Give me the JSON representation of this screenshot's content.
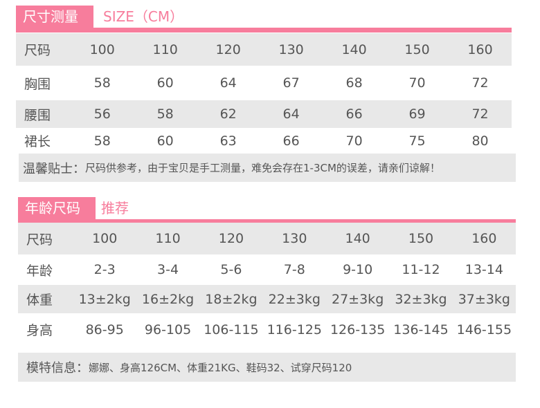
{
  "measure": {
    "tag": "尺寸测量",
    "subtitle": "SIZE（CM）",
    "rows": [
      {
        "label": "尺码",
        "values": [
          "100",
          "110",
          "120",
          "130",
          "140",
          "150",
          "160"
        ]
      },
      {
        "label": "胸围",
        "values": [
          "58",
          "60",
          "64",
          "67",
          "68",
          "70",
          "72"
        ]
      },
      {
        "label": "腰围",
        "values": [
          "56",
          "58",
          "62",
          "64",
          "66",
          "69",
          "72"
        ]
      },
      {
        "label": "裙长",
        "values": [
          "58",
          "60",
          "63",
          "66",
          "70",
          "75",
          "80"
        ]
      }
    ],
    "note_label": "温馨贴士：",
    "note_text": "尺码供参考，由于宝贝是手工测量，难免会存在1-3CM的误差，请亲们谅解！"
  },
  "age": {
    "tag": "年龄尺码",
    "subtitle": "推荐",
    "rows": [
      {
        "label": "尺码",
        "values": [
          "100",
          "110",
          "120",
          "130",
          "140",
          "150",
          "160"
        ]
      },
      {
        "label": "年龄",
        "values": [
          "2-3",
          "3-4",
          "5-6",
          "7-8",
          "9-10",
          "11-12",
          "13-14"
        ]
      },
      {
        "label": "体重",
        "values": [
          "13±2kg",
          "16±2kg",
          "18±2kg",
          "22±3kg",
          "27±3kg",
          "32±3kg",
          "37±3kg"
        ]
      },
      {
        "label": "身高",
        "values": [
          "86-95",
          "96-105",
          "106-115",
          "116-125",
          "126-135",
          "136-145",
          "146-155"
        ]
      }
    ],
    "model_label": "模特信息：",
    "model_text": "娜娜、身高126CM、体重21KG、鞋码32、试穿尺码120"
  },
  "colors": {
    "accent": "#f77d9c",
    "row_gray": "#e8e8e8",
    "text": "#555555"
  }
}
